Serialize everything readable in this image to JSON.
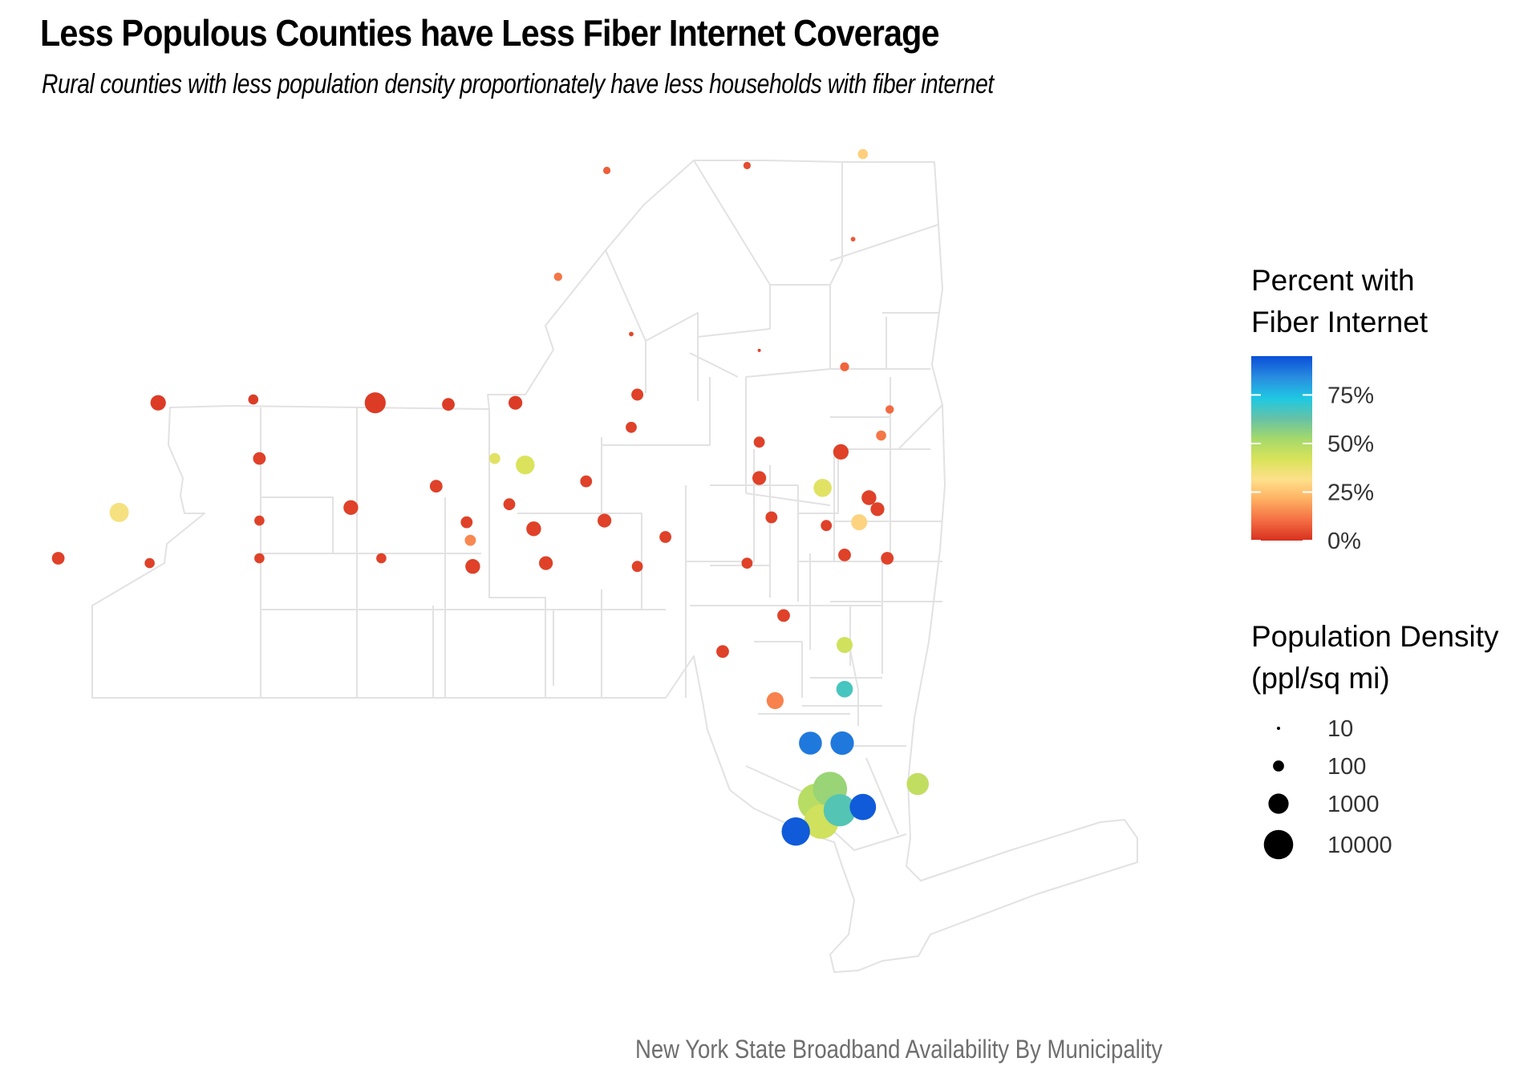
{
  "title": "Less Populous Counties have Less Fiber Internet Coverage",
  "subtitle": "Rural counties with less population density proportionately have less households with fiber internet",
  "caption": "New York State Broadband Availability By Municipality",
  "chart_data": {
    "type": "map-bubble",
    "region": "New York State counties",
    "legend_color": {
      "title_lines": [
        "Percent with",
        "Fiber Internet"
      ],
      "ticks": [
        {
          "value": 0,
          "label": "0%"
        },
        {
          "value": 25,
          "label": "25%"
        },
        {
          "value": 50,
          "label": "50%"
        },
        {
          "value": 75,
          "label": "75%"
        }
      ],
      "range": [
        0,
        95
      ],
      "colors": [
        "#d7301f",
        "#f46d43",
        "#fdae61",
        "#fee08b",
        "#d9e35a",
        "#a6d96a",
        "#66c2a5",
        "#1fc8e3",
        "#2a8fe0",
        "#0a4fd8"
      ]
    },
    "legend_size": {
      "title_lines": [
        "Population Density",
        "(ppl/sq mi)"
      ],
      "breaks": [
        {
          "value": 10,
          "label": "10"
        },
        {
          "value": 100,
          "label": "100"
        },
        {
          "value": 1000,
          "label": "1000"
        },
        {
          "value": 10000,
          "label": "10000"
        }
      ]
    },
    "counties": [
      {
        "lon": -75.7,
        "lat": 44.62,
        "fiber_pct": 8,
        "density": 40
      },
      {
        "lon": -74.55,
        "lat": 44.65,
        "fiber_pct": 5,
        "density": 40
      },
      {
        "lon": -73.6,
        "lat": 44.72,
        "fiber_pct": 28,
        "density": 80
      },
      {
        "lon": -73.68,
        "lat": 44.2,
        "fiber_pct": 7,
        "density": 20
      },
      {
        "lon": -76.1,
        "lat": 43.97,
        "fiber_pct": 12,
        "density": 50
      },
      {
        "lon": -75.5,
        "lat": 43.62,
        "fiber_pct": 4,
        "density": 20
      },
      {
        "lon": -74.45,
        "lat": 43.52,
        "fiber_pct": 3,
        "density": 2
      },
      {
        "lon": -73.75,
        "lat": 43.42,
        "fiber_pct": 9,
        "density": 60
      },
      {
        "lon": -73.38,
        "lat": 43.16,
        "fiber_pct": 10,
        "density": 50
      },
      {
        "lon": -79.38,
        "lat": 43.2,
        "fiber_pct": 2,
        "density": 300
      },
      {
        "lon": -78.6,
        "lat": 43.22,
        "fiber_pct": 2,
        "density": 80
      },
      {
        "lon": -77.6,
        "lat": 43.2,
        "fiber_pct": 2,
        "density": 1200
      },
      {
        "lon": -77.0,
        "lat": 43.19,
        "fiber_pct": 2,
        "density": 150
      },
      {
        "lon": -76.45,
        "lat": 43.2,
        "fiber_pct": 2,
        "density": 200
      },
      {
        "lon": -75.5,
        "lat": 43.05,
        "fiber_pct": 3,
        "density": 100
      },
      {
        "lon": -75.45,
        "lat": 43.25,
        "fiber_pct": 3,
        "density": 130
      },
      {
        "lon": -74.45,
        "lat": 42.96,
        "fiber_pct": 3,
        "density": 100
      },
      {
        "lon": -73.78,
        "lat": 42.9,
        "fiber_pct": 3,
        "density": 300
      },
      {
        "lon": -73.45,
        "lat": 43.0,
        "fiber_pct": 12,
        "density": 80
      },
      {
        "lon": -78.55,
        "lat": 42.86,
        "fiber_pct": 3,
        "density": 150
      },
      {
        "lon": -76.37,
        "lat": 42.82,
        "fiber_pct": 42,
        "density": 700
      },
      {
        "lon": -76.62,
        "lat": 42.86,
        "fiber_pct": 40,
        "density": 100
      },
      {
        "lon": -75.87,
        "lat": 42.72,
        "fiber_pct": 3,
        "density": 120
      },
      {
        "lon": -74.45,
        "lat": 42.74,
        "fiber_pct": 3,
        "density": 200
      },
      {
        "lon": -73.93,
        "lat": 42.68,
        "fiber_pct": 40,
        "density": 600
      },
      {
        "lon": -73.55,
        "lat": 42.62,
        "fiber_pct": 3,
        "density": 250
      },
      {
        "lon": -79.7,
        "lat": 42.53,
        "fiber_pct": 34,
        "density": 800
      },
      {
        "lon": -78.55,
        "lat": 42.48,
        "fiber_pct": 3,
        "density": 80
      },
      {
        "lon": -77.8,
        "lat": 42.56,
        "fiber_pct": 3,
        "density": 250
      },
      {
        "lon": -77.1,
        "lat": 42.69,
        "fiber_pct": 3,
        "density": 150
      },
      {
        "lon": -76.85,
        "lat": 42.47,
        "fiber_pct": 3,
        "density": 120
      },
      {
        "lon": -76.5,
        "lat": 42.58,
        "fiber_pct": 3,
        "density": 120
      },
      {
        "lon": -76.82,
        "lat": 42.36,
        "fiber_pct": 15,
        "density": 100
      },
      {
        "lon": -76.3,
        "lat": 42.43,
        "fiber_pct": 3,
        "density": 250
      },
      {
        "lon": -75.72,
        "lat": 42.48,
        "fiber_pct": 3,
        "density": 200
      },
      {
        "lon": -75.22,
        "lat": 42.38,
        "fiber_pct": 3,
        "density": 120
      },
      {
        "lon": -74.35,
        "lat": 42.5,
        "fiber_pct": 3,
        "density": 120
      },
      {
        "lon": -73.9,
        "lat": 42.45,
        "fiber_pct": 3,
        "density": 100
      },
      {
        "lon": -73.63,
        "lat": 42.47,
        "fiber_pct": 29,
        "density": 350
      },
      {
        "lon": -73.48,
        "lat": 42.55,
        "fiber_pct": 3,
        "density": 200
      },
      {
        "lon": -80.2,
        "lat": 42.25,
        "fiber_pct": 3,
        "density": 150
      },
      {
        "lon": -79.45,
        "lat": 42.22,
        "fiber_pct": 3,
        "density": 80
      },
      {
        "lon": -78.55,
        "lat": 42.25,
        "fiber_pct": 3,
        "density": 80
      },
      {
        "lon": -77.55,
        "lat": 42.25,
        "fiber_pct": 3,
        "density": 80
      },
      {
        "lon": -76.8,
        "lat": 42.2,
        "fiber_pct": 3,
        "density": 250
      },
      {
        "lon": -76.2,
        "lat": 42.22,
        "fiber_pct": 3,
        "density": 200
      },
      {
        "lon": -75.45,
        "lat": 42.2,
        "fiber_pct": 3,
        "density": 100
      },
      {
        "lon": -74.55,
        "lat": 42.22,
        "fiber_pct": 3,
        "density": 100
      },
      {
        "lon": -73.75,
        "lat": 42.27,
        "fiber_pct": 3,
        "density": 150
      },
      {
        "lon": -73.4,
        "lat": 42.25,
        "fiber_pct": 3,
        "density": 150
      },
      {
        "lon": -74.25,
        "lat": 41.9,
        "fiber_pct": 3,
        "density": 150
      },
      {
        "lon": -74.75,
        "lat": 41.68,
        "fiber_pct": 3,
        "density": 150
      },
      {
        "lon": -73.75,
        "lat": 41.72,
        "fiber_pct": 44,
        "density": 350
      },
      {
        "lon": -74.32,
        "lat": 41.38,
        "fiber_pct": 14,
        "density": 450
      },
      {
        "lon": -73.75,
        "lat": 41.45,
        "fiber_pct": 68,
        "density": 400
      },
      {
        "lon": -74.03,
        "lat": 41.12,
        "fiber_pct": 88,
        "density": 2000
      },
      {
        "lon": -73.77,
        "lat": 41.12,
        "fiber_pct": 88,
        "density": 2200
      },
      {
        "lon": -73.15,
        "lat": 40.87,
        "fiber_pct": 47,
        "density": 1600
      },
      {
        "lon": -73.98,
        "lat": 40.76,
        "fiber_pct": 49,
        "density": 70000
      },
      {
        "lon": -73.87,
        "lat": 40.84,
        "fiber_pct": 55,
        "density": 33000
      },
      {
        "lon": -73.6,
        "lat": 40.73,
        "fiber_pct": 93,
        "density": 4700
      },
      {
        "lon": -73.79,
        "lat": 40.71,
        "fiber_pct": 66,
        "density": 21000
      },
      {
        "lon": -73.94,
        "lat": 40.64,
        "fiber_pct": 44,
        "density": 37000
      },
      {
        "lon": -74.15,
        "lat": 40.58,
        "fiber_pct": 93,
        "density": 8000
      }
    ]
  }
}
